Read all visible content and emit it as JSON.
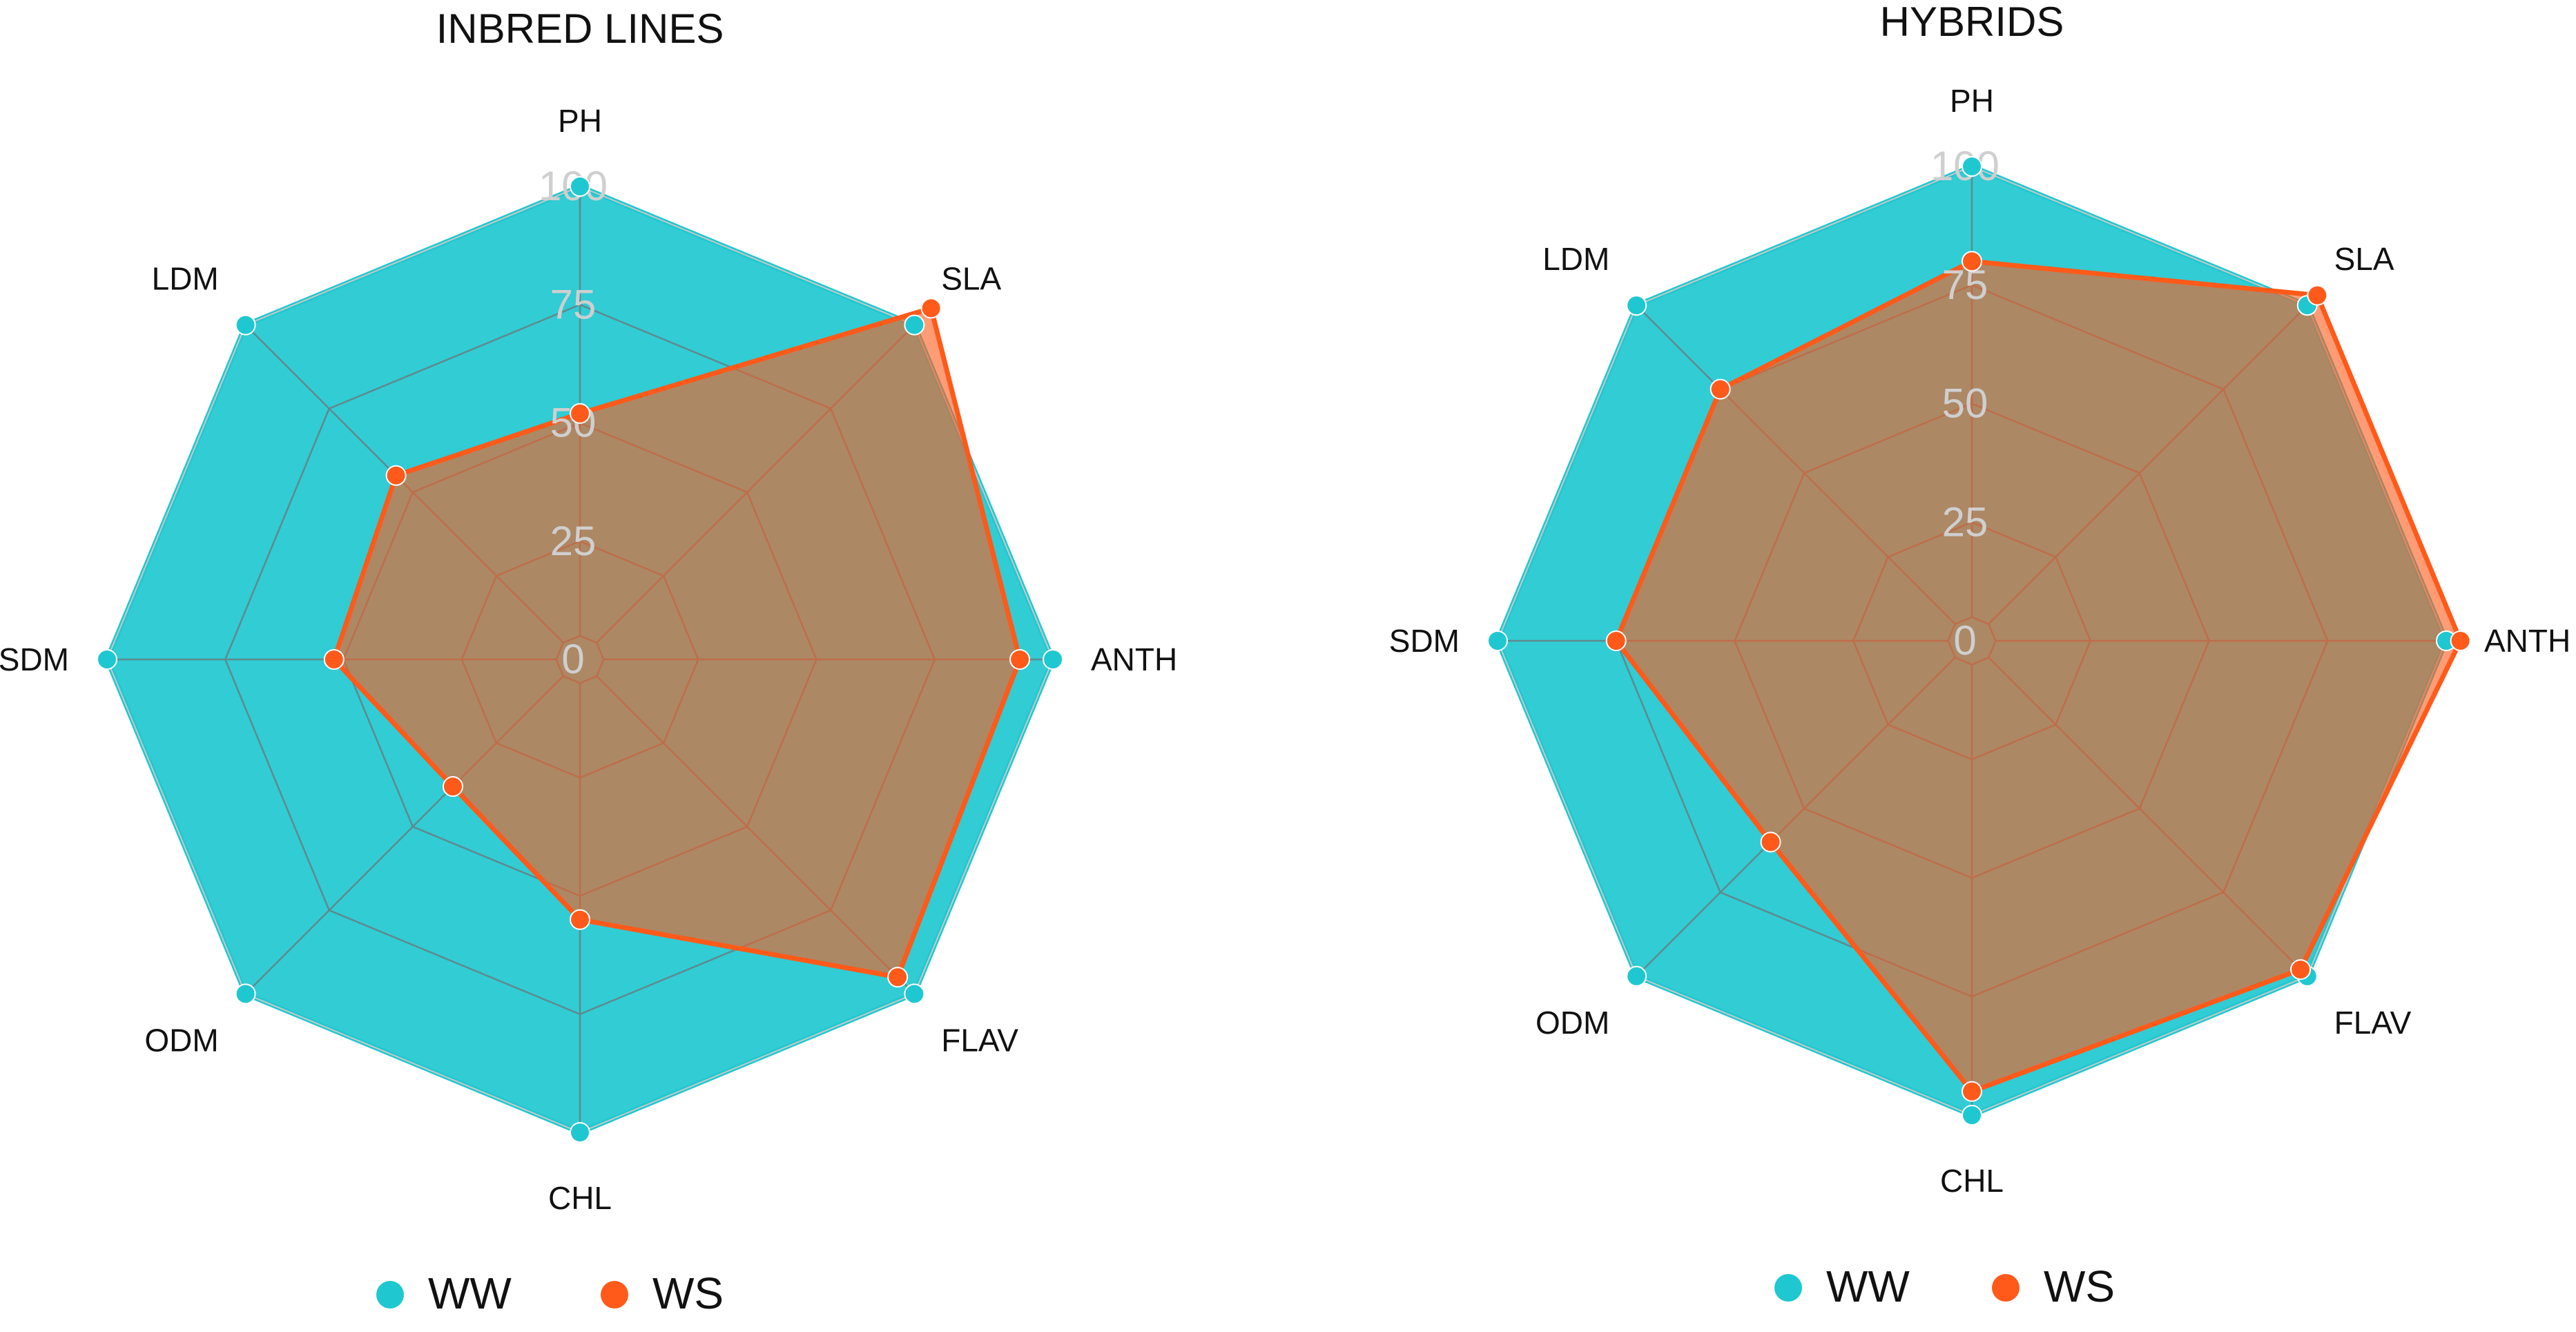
{
  "colors": {
    "ww": "#1fc8d0",
    "ws": "#ff5a1a",
    "grid": "#5f8a8e",
    "tick": "#cfcfcf",
    "overlap_dot": "#8a7b5e"
  },
  "chart_data": [
    {
      "type": "radar",
      "title": "INBRED LINES",
      "axes": [
        "PH",
        "SLA",
        "ANTH",
        "FLAV",
        "CHL",
        "ODM",
        "SDM",
        "LDM"
      ],
      "radial_ticks": [
        "0",
        "25",
        "50",
        "75",
        "100"
      ],
      "rlim": [
        0,
        100
      ],
      "series": [
        {
          "name": "WW",
          "values": [
            100,
            100,
            100,
            100,
            100,
            100,
            100,
            100
          ]
        },
        {
          "name": "WS",
          "values": [
            52,
            105,
            93,
            95,
            55,
            38,
            52,
            55
          ]
        }
      ],
      "legend": [
        "WW",
        "WS"
      ]
    },
    {
      "type": "radar",
      "title": "HYBRIDS",
      "axes": [
        "PH",
        "SLA",
        "ANTH",
        "FLAV",
        "CHL",
        "ODM",
        "SDM",
        "LDM"
      ],
      "radial_ticks": [
        "0",
        "25",
        "50",
        "75",
        "100"
      ],
      "rlim": [
        0,
        100
      ],
      "series": [
        {
          "name": "WW",
          "values": [
            100,
            100,
            100,
            100,
            100,
            100,
            100,
            100
          ]
        },
        {
          "name": "WS",
          "values": [
            80,
            103,
            103,
            98,
            95,
            60,
            75,
            75
          ]
        }
      ],
      "legend": [
        "WW",
        "WS"
      ]
    }
  ]
}
